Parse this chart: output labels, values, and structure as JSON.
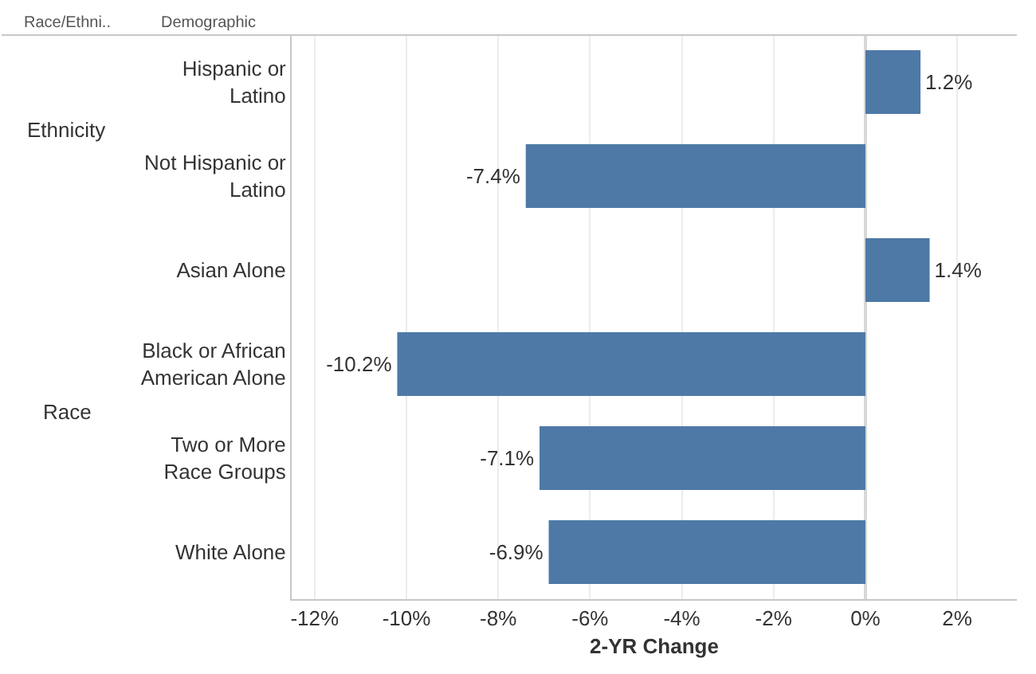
{
  "chart_data": {
    "type": "bar",
    "orientation": "horizontal",
    "categories": [
      "Hispanic or\nLatino",
      "Not Hispanic or\nLatino",
      "Asian Alone",
      "Black or African\nAmerican Alone",
      "Two or More\nRace Groups",
      "White Alone"
    ],
    "values": [
      1.2,
      -7.4,
      1.4,
      -10.2,
      -7.1,
      -6.9
    ],
    "value_labels": [
      "1.2%",
      "-7.4%",
      "1.4%",
      "-10.2%",
      "-7.1%",
      "-6.9%"
    ],
    "color": "#4e79a7",
    "xlabel": "2-YR Change",
    "xlim": [
      -12.5,
      3.3
    ],
    "xticks": [
      {
        "value": -12,
        "label": "-12%"
      },
      {
        "value": -10,
        "label": "-10%"
      },
      {
        "value": -8,
        "label": "-8%"
      },
      {
        "value": -6,
        "label": "-6%"
      },
      {
        "value": -4,
        "label": "-4%"
      },
      {
        "value": -2,
        "label": "-2%"
      },
      {
        "value": 0,
        "label": "0%"
      },
      {
        "value": 2,
        "label": "2%"
      }
    ],
    "grid": "x",
    "annotations": [
      "Race/Ethni..",
      "Demographic",
      "Ethnicity",
      "Race"
    ]
  }
}
